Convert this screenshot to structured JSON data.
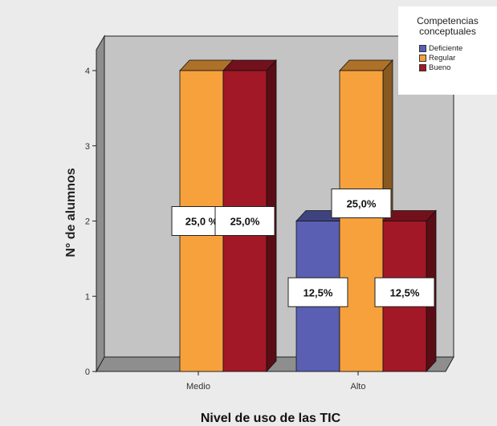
{
  "chart_data": {
    "type": "bar",
    "title": "",
    "xlabel": "Nivel de uso de las TIC",
    "ylabel": "N° de alumnos",
    "categories": [
      "Medio",
      "Alto"
    ],
    "ylim": [
      0,
      4
    ],
    "yticks": [
      "0",
      "1",
      "2",
      "3",
      "4"
    ],
    "legend": {
      "title_lines": [
        "Competencias",
        "conceptuales"
      ],
      "placement": "top-right"
    },
    "series": [
      {
        "name": "Deficiente",
        "color": "#5a5fb3",
        "values": [
          0,
          2
        ],
        "labels": [
          "",
          "12,5%"
        ]
      },
      {
        "name": "Regular",
        "color": "#f7a13c",
        "values": [
          4,
          4
        ],
        "labels": [
          "25,0 %",
          "25,0%"
        ]
      },
      {
        "name": "Bueno",
        "color": "#a31826",
        "values": [
          4,
          2
        ],
        "labels": [
          "25,0%",
          "12,5%"
        ]
      }
    ]
  }
}
